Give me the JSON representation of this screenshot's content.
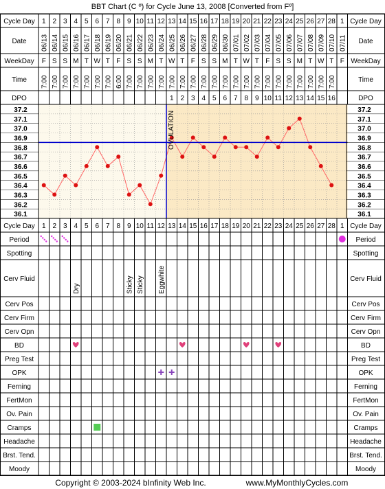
{
  "title": "BBT Chart (C º) for Cycle June 13, 2008  [Converted from Fº]",
  "footer": {
    "copyright": "Copyright © 2003-2024 bInfinity Web Inc.",
    "site": "www.MyMonthlyCycles.com"
  },
  "row_labels": {
    "cycle_day": "Cycle Day",
    "date": "Date",
    "weekday": "WeekDay",
    "time": "Time",
    "dpo": "DPO",
    "period": "Period",
    "spotting": "Spotting",
    "cerv_fluid": "Cerv Fluid",
    "cerv_pos": "Cerv Pos",
    "cerv_firm": "Cerv Firm",
    "cerv_opn": "Cerv Opn",
    "bd": "BD",
    "preg_test": "Preg Test",
    "opk": "OPK",
    "ferning": "Ferning",
    "fertmon": "FertMon",
    "ov_pain": "Ov. Pain",
    "cramps": "Cramps",
    "headache": "Headache",
    "brst_tend": "Brst. Tend.",
    "moody": "Moody"
  },
  "days": [
    "1",
    "2",
    "3",
    "4",
    "5",
    "6",
    "7",
    "8",
    "9",
    "10",
    "11",
    "12",
    "13",
    "14",
    "15",
    "16",
    "17",
    "18",
    "19",
    "20",
    "21",
    "22",
    "23",
    "24",
    "25",
    "26",
    "27",
    "28",
    "1"
  ],
  "dates": [
    "06/13",
    "06/14",
    "06/15",
    "06/16",
    "06/17",
    "06/18",
    "06/19",
    "06/20",
    "06/21",
    "06/22",
    "06/23",
    "06/24",
    "06/25",
    "06/26",
    "06/27",
    "06/28",
    "06/29",
    "06/30",
    "07/01",
    "07/02",
    "07/03",
    "07/04",
    "07/05",
    "07/06",
    "07/07",
    "07/08",
    "07/09",
    "07/10",
    "07/11"
  ],
  "weekdays": [
    "F",
    "S",
    "S",
    "M",
    "T",
    "W",
    "T",
    "F",
    "S",
    "S",
    "M",
    "T",
    "W",
    "T",
    "F",
    "S",
    "S",
    "M",
    "T",
    "W",
    "T",
    "F",
    "S",
    "S",
    "M",
    "T",
    "W",
    "T",
    "F"
  ],
  "times": [
    "7:00",
    "7:00",
    "7:00",
    "7:00",
    "7:00",
    "7:00",
    "7:00",
    "6:00",
    "7:00",
    "7:00",
    "7:00",
    "7:00",
    "7:00",
    "7:00",
    "7:00",
    "7:00",
    "7:00",
    "7:00",
    "7:00",
    "7:00",
    "7:00",
    "7:00",
    "7:00",
    "7:00",
    "7:00",
    "7:00",
    "7:00",
    "7:00",
    ""
  ],
  "dpo": [
    "",
    "",
    "",
    "",
    "",
    "",
    "",
    "",
    "",
    "",
    "",
    "",
    "1",
    "2",
    "3",
    "4",
    "5",
    "6",
    "7",
    "8",
    "9",
    "10",
    "11",
    "12",
    "13",
    "14",
    "15",
    "16",
    ""
  ],
  "cerv_fluid": {
    "4": "Dry",
    "9": "Sticky",
    "10": "Sticky",
    "12": "Eggwhite"
  },
  "ovulation_label": "OVULATION",
  "colors": {
    "pre_ovulation_bg": "#fdf9ec",
    "post_ovulation_bg": "#fbe9c5",
    "line": "#ff6666",
    "point": "#dd1111",
    "coverline": "#0000cc",
    "grid": "#000000",
    "period": "#e02fe0",
    "bd_heart": "#e0407a",
    "opk": "#8844bb",
    "cramps": "#55cc55"
  },
  "chart_data": {
    "type": "line",
    "x_label": "Cycle Day",
    "y_ticks": [
      37.2,
      37.1,
      37.0,
      36.9,
      36.8,
      36.7,
      36.6,
      36.5,
      36.4,
      36.3,
      36.2,
      36.1
    ],
    "ylim": [
      36.1,
      37.2
    ],
    "coverline": 36.85,
    "ovulation_day": 12,
    "series": [
      {
        "x": [
          1,
          2,
          3,
          4,
          5,
          6,
          7,
          8,
          9,
          10,
          11,
          12,
          13,
          14,
          15,
          16,
          17,
          18,
          19,
          20,
          21,
          22,
          23,
          24,
          25,
          26,
          27,
          28
        ],
        "values": [
          36.4,
          36.3,
          36.5,
          36.4,
          36.6,
          36.8,
          36.6,
          36.7,
          36.3,
          36.4,
          36.2,
          36.5,
          36.9,
          36.7,
          36.9,
          36.8,
          36.7,
          36.9,
          36.8,
          36.8,
          36.7,
          36.9,
          36.8,
          37.0,
          37.1,
          36.8,
          36.6,
          36.4
        ]
      }
    ],
    "period_days": [
      1,
      2,
      3,
      29
    ],
    "bd_days": [
      4,
      14,
      20,
      23
    ],
    "opk_days": [
      12,
      13
    ],
    "cramps_days": [
      6
    ]
  }
}
